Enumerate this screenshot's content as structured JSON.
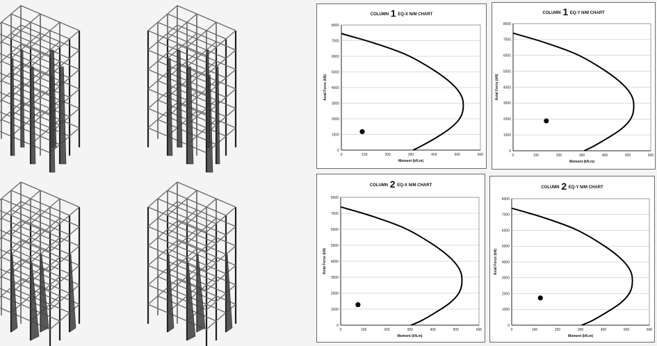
{
  "chart_data": [
    {
      "type": "line",
      "title_prefix": "COLUMN",
      "title_number": "1",
      "title_suffix": "EQ-X N/M CHART",
      "xlabel": "Moment (kN.m)",
      "ylabel": "Axial Force (kN)",
      "xlim": [
        0,
        600
      ],
      "ylim": [
        0,
        8000
      ],
      "xticks": [
        "0",
        "100",
        "200",
        "300",
        "400",
        "500",
        "600"
      ],
      "yticks": [
        "0",
        "1000",
        "2000",
        "3000",
        "4000",
        "5000",
        "6000",
        "7000",
        "8000"
      ],
      "grid": true,
      "series": [
        {
          "kind": "line",
          "x": [
            0,
            140,
            280,
            400,
            480,
            520,
            525,
            510,
            470,
            410,
            350,
            310
          ],
          "y": [
            7450,
            6850,
            6100,
            5100,
            4200,
            3400,
            2600,
            2000,
            1400,
            800,
            300,
            0
          ]
        },
        {
          "kind": "point",
          "x": [
            90
          ],
          "y": [
            1180
          ]
        }
      ]
    },
    {
      "type": "line",
      "title_prefix": "COLUMN",
      "title_number": "1",
      "title_suffix": "EQ-Y N/M CHART",
      "xlabel": "Moment (kN.m)",
      "ylabel": "Axial Force (kN)",
      "xlim": [
        0,
        600
      ],
      "ylim": [
        0,
        8000
      ],
      "xticks": [
        "0",
        "100",
        "200",
        "300",
        "400",
        "500",
        "600"
      ],
      "yticks": [
        "0",
        "1000",
        "2000",
        "3000",
        "4000",
        "5000",
        "6000",
        "7000",
        "8000"
      ],
      "grid": true,
      "series": [
        {
          "kind": "line",
          "x": [
            0,
            140,
            280,
            400,
            480,
            520,
            525,
            510,
            470,
            410,
            350,
            310
          ],
          "y": [
            7400,
            6800,
            6050,
            5050,
            4150,
            3350,
            2550,
            1950,
            1350,
            780,
            280,
            0
          ]
        },
        {
          "kind": "point",
          "x": [
            145
          ],
          "y": [
            1880
          ]
        }
      ]
    },
    {
      "type": "line",
      "title_prefix": "COLUMN",
      "title_number": "2",
      "title_suffix": "EQ-X N/M CHART",
      "xlabel": "Moment (kN.m)",
      "ylabel": "Axial Force (kN)",
      "xlim": [
        0,
        600
      ],
      "ylim": [
        0,
        8000
      ],
      "xticks": [
        "0",
        "100",
        "200",
        "300",
        "400",
        "500",
        "600"
      ],
      "yticks": [
        "0",
        "1000",
        "2000",
        "3000",
        "4000",
        "5000",
        "6000",
        "7000",
        "8000"
      ],
      "grid": true,
      "series": [
        {
          "kind": "line",
          "x": [
            0,
            140,
            280,
            400,
            480,
            520,
            525,
            510,
            470,
            410,
            350,
            305
          ],
          "y": [
            7400,
            6800,
            6050,
            5050,
            4150,
            3350,
            2550,
            1950,
            1350,
            780,
            280,
            0
          ]
        },
        {
          "kind": "point",
          "x": [
            75
          ],
          "y": [
            1280
          ]
        }
      ]
    },
    {
      "type": "line",
      "title_prefix": "COLUMN",
      "title_number": "2",
      "title_suffix": "EQ-Y N/M CHART",
      "xlabel": "Moment (kN.m)",
      "ylabel": "Axial Force (kN)",
      "xlim": [
        0,
        600
      ],
      "ylim": [
        0,
        8000
      ],
      "xticks": [
        "0",
        "100",
        "200",
        "300",
        "400",
        "500",
        "600"
      ],
      "yticks": [
        "0",
        "1000",
        "2000",
        "3000",
        "4000",
        "5000",
        "6000",
        "7000",
        "8000"
      ],
      "grid": true,
      "series": [
        {
          "kind": "line",
          "x": [
            0,
            140,
            280,
            400,
            480,
            520,
            525,
            510,
            470,
            410,
            350,
            305
          ],
          "y": [
            7400,
            6800,
            6050,
            5050,
            4150,
            3350,
            2550,
            1950,
            1350,
            780,
            280,
            0
          ]
        },
        {
          "kind": "point",
          "x": [
            125
          ],
          "y": [
            1720
          ]
        }
      ]
    }
  ]
}
